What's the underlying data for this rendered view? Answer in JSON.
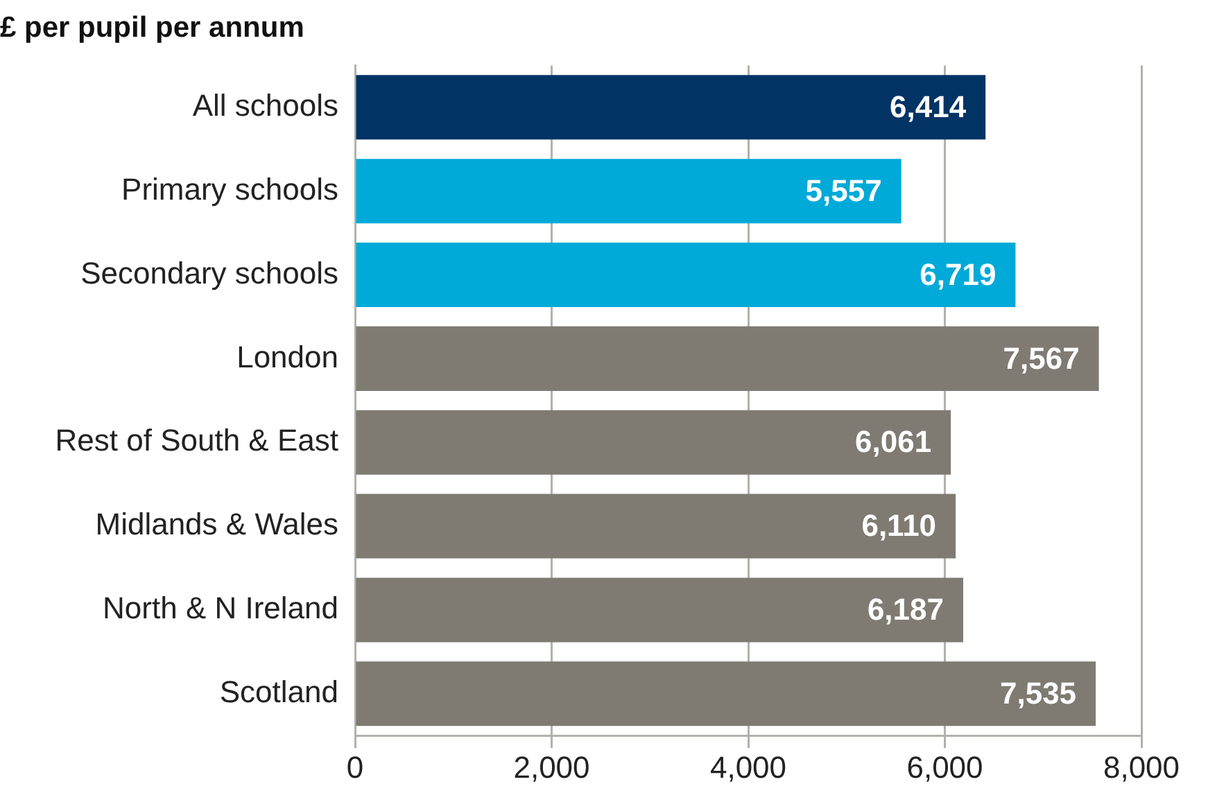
{
  "chart_data": {
    "type": "bar",
    "orientation": "horizontal",
    "title": "£ per pupil per annum",
    "categories": [
      "All schools",
      "Primary schools",
      "Secondary schools",
      "London",
      "Rest of South & East",
      "Midlands & Wales",
      "North & N Ireland",
      "Scotland"
    ],
    "values": [
      6414,
      5557,
      6719,
      7567,
      6061,
      6110,
      6187,
      7535
    ],
    "colors": [
      "#013365",
      "#00aad8",
      "#00aad8",
      "#7f7b73",
      "#7f7b73",
      "#7f7b73",
      "#7f7b73",
      "#7f7b73"
    ],
    "value_labels": [
      "6,414",
      "5,557",
      "6,719",
      "7,567",
      "6,061",
      "6,110",
      "6,187",
      "7,535"
    ],
    "xlim": [
      0,
      8000
    ],
    "xticks": [
      0,
      {
        "value": 2000,
        "label": "2,000"
      },
      {
        "value": 4000,
        "label": "4,000"
      },
      {
        "value": 6000,
        "label": "6,000"
      },
      {
        "value": 8000,
        "label": "8,000"
      }
    ],
    "grid": "x"
  }
}
